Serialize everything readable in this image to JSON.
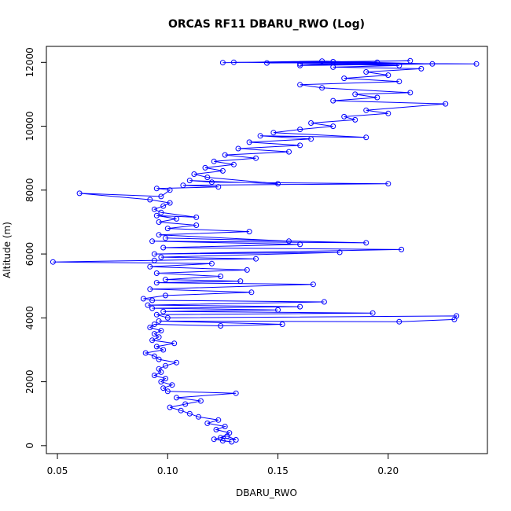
{
  "chart_data": {
    "type": "scatter",
    "title": "ORCAS RF11 DBARU_RWO (Log)",
    "xlabel": "DBARU_RWO",
    "ylabel": "Altitude (m)",
    "xlim": [
      0.045,
      0.245
    ],
    "ylim": [
      -250,
      12500
    ],
    "xticks": [
      0.05,
      0.1,
      0.15,
      0.2
    ],
    "xtick_labels": [
      "0.05",
      "0.10",
      "0.15",
      "0.20"
    ],
    "yticks": [
      0,
      2000,
      4000,
      6000,
      8000,
      10000,
      12000
    ],
    "ytick_labels": [
      "0",
      "2000",
      "4000",
      "6000",
      "8000",
      "10000",
      "12000"
    ],
    "grid": false,
    "legend": "none",
    "series": [
      {
        "color": "#0000ff",
        "marker": "open-circle",
        "line": true,
        "points": [
          [
            0.125,
            150
          ],
          [
            0.129,
            120
          ],
          [
            0.121,
            200
          ],
          [
            0.127,
            300
          ],
          [
            0.131,
            180
          ],
          [
            0.124,
            250
          ],
          [
            0.128,
            400
          ],
          [
            0.122,
            500
          ],
          [
            0.126,
            600
          ],
          [
            0.118,
            700
          ],
          [
            0.123,
            800
          ],
          [
            0.114,
            900
          ],
          [
            0.11,
            1000
          ],
          [
            0.106,
            1100
          ],
          [
            0.101,
            1200
          ],
          [
            0.108,
            1300
          ],
          [
            0.115,
            1400
          ],
          [
            0.104,
            1500
          ],
          [
            0.131,
            1640
          ],
          [
            0.1,
            1700
          ],
          [
            0.098,
            1800
          ],
          [
            0.102,
            1900
          ],
          [
            0.097,
            2000
          ],
          [
            0.099,
            2100
          ],
          [
            0.094,
            2200
          ],
          [
            0.097,
            2300
          ],
          [
            0.096,
            2400
          ],
          [
            0.099,
            2500
          ],
          [
            0.104,
            2600
          ],
          [
            0.096,
            2700
          ],
          [
            0.094,
            2800
          ],
          [
            0.09,
            2900
          ],
          [
            0.098,
            3000
          ],
          [
            0.095,
            3100
          ],
          [
            0.103,
            3200
          ],
          [
            0.093,
            3300
          ],
          [
            0.096,
            3400
          ],
          [
            0.094,
            3500
          ],
          [
            0.097,
            3600
          ],
          [
            0.092,
            3700
          ],
          [
            0.094,
            3800
          ],
          [
            0.124,
            3750
          ],
          [
            0.152,
            3800
          ],
          [
            0.096,
            3900
          ],
          [
            0.205,
            3880
          ],
          [
            0.23,
            3950
          ],
          [
            0.231,
            4060
          ],
          [
            0.1,
            4000
          ],
          [
            0.095,
            4100
          ],
          [
            0.193,
            4150
          ],
          [
            0.098,
            4200
          ],
          [
            0.15,
            4250
          ],
          [
            0.093,
            4300
          ],
          [
            0.16,
            4350
          ],
          [
            0.091,
            4400
          ],
          [
            0.171,
            4500
          ],
          [
            0.093,
            4550
          ],
          [
            0.089,
            4600
          ],
          [
            0.099,
            4700
          ],
          [
            0.138,
            4800
          ],
          [
            0.092,
            4900
          ],
          [
            0.166,
            5050
          ],
          [
            0.095,
            5100
          ],
          [
            0.133,
            5150
          ],
          [
            0.099,
            5200
          ],
          [
            0.124,
            5300
          ],
          [
            0.095,
            5400
          ],
          [
            0.136,
            5500
          ],
          [
            0.092,
            5600
          ],
          [
            0.12,
            5700
          ],
          [
            0.048,
            5750
          ],
          [
            0.094,
            5800
          ],
          [
            0.14,
            5850
          ],
          [
            0.097,
            5900
          ],
          [
            0.178,
            6050
          ],
          [
            0.094,
            6000
          ],
          [
            0.206,
            6140
          ],
          [
            0.098,
            6200
          ],
          [
            0.16,
            6300
          ],
          [
            0.093,
            6400
          ],
          [
            0.19,
            6350
          ],
          [
            0.099,
            6500
          ],
          [
            0.155,
            6400
          ],
          [
            0.096,
            6600
          ],
          [
            0.137,
            6700
          ],
          [
            0.1,
            6800
          ],
          [
            0.113,
            6900
          ],
          [
            0.096,
            7000
          ],
          [
            0.104,
            7100
          ],
          [
            0.095,
            7200
          ],
          [
            0.113,
            7150
          ],
          [
            0.097,
            7300
          ],
          [
            0.094,
            7400
          ],
          [
            0.098,
            7500
          ],
          [
            0.101,
            7600
          ],
          [
            0.092,
            7700
          ],
          [
            0.06,
            7900
          ],
          [
            0.097,
            7800
          ],
          [
            0.101,
            8000
          ],
          [
            0.095,
            8050
          ],
          [
            0.123,
            8100
          ],
          [
            0.107,
            8150
          ],
          [
            0.2,
            8200
          ],
          [
            0.12,
            8250
          ],
          [
            0.11,
            8300
          ],
          [
            0.15,
            8200
          ],
          [
            0.118,
            8400
          ],
          [
            0.112,
            8500
          ],
          [
            0.125,
            8600
          ],
          [
            0.117,
            8700
          ],
          [
            0.13,
            8800
          ],
          [
            0.121,
            8900
          ],
          [
            0.14,
            9000
          ],
          [
            0.126,
            9100
          ],
          [
            0.155,
            9200
          ],
          [
            0.132,
            9300
          ],
          [
            0.16,
            9400
          ],
          [
            0.137,
            9500
          ],
          [
            0.165,
            9600
          ],
          [
            0.142,
            9700
          ],
          [
            0.19,
            9650
          ],
          [
            0.148,
            9800
          ],
          [
            0.16,
            9900
          ],
          [
            0.175,
            10000
          ],
          [
            0.165,
            10100
          ],
          [
            0.185,
            10200
          ],
          [
            0.18,
            10300
          ],
          [
            0.2,
            10400
          ],
          [
            0.19,
            10500
          ],
          [
            0.226,
            10700
          ],
          [
            0.175,
            10800
          ],
          [
            0.195,
            10900
          ],
          [
            0.185,
            11000
          ],
          [
            0.21,
            11050
          ],
          [
            0.17,
            11200
          ],
          [
            0.16,
            11300
          ],
          [
            0.205,
            11400
          ],
          [
            0.18,
            11500
          ],
          [
            0.2,
            11600
          ],
          [
            0.19,
            11700
          ],
          [
            0.215,
            11800
          ],
          [
            0.175,
            11850
          ],
          [
            0.205,
            11900
          ],
          [
            0.16,
            11950
          ],
          [
            0.24,
            11950
          ],
          [
            0.13,
            12000
          ],
          [
            0.175,
            12020
          ],
          [
            0.21,
            12050
          ],
          [
            0.145,
            11980
          ],
          [
            0.195,
            12000
          ],
          [
            0.16,
            11900
          ],
          [
            0.22,
            11950
          ],
          [
            0.17,
            12040
          ],
          [
            0.125,
            11990
          ]
        ]
      }
    ]
  }
}
